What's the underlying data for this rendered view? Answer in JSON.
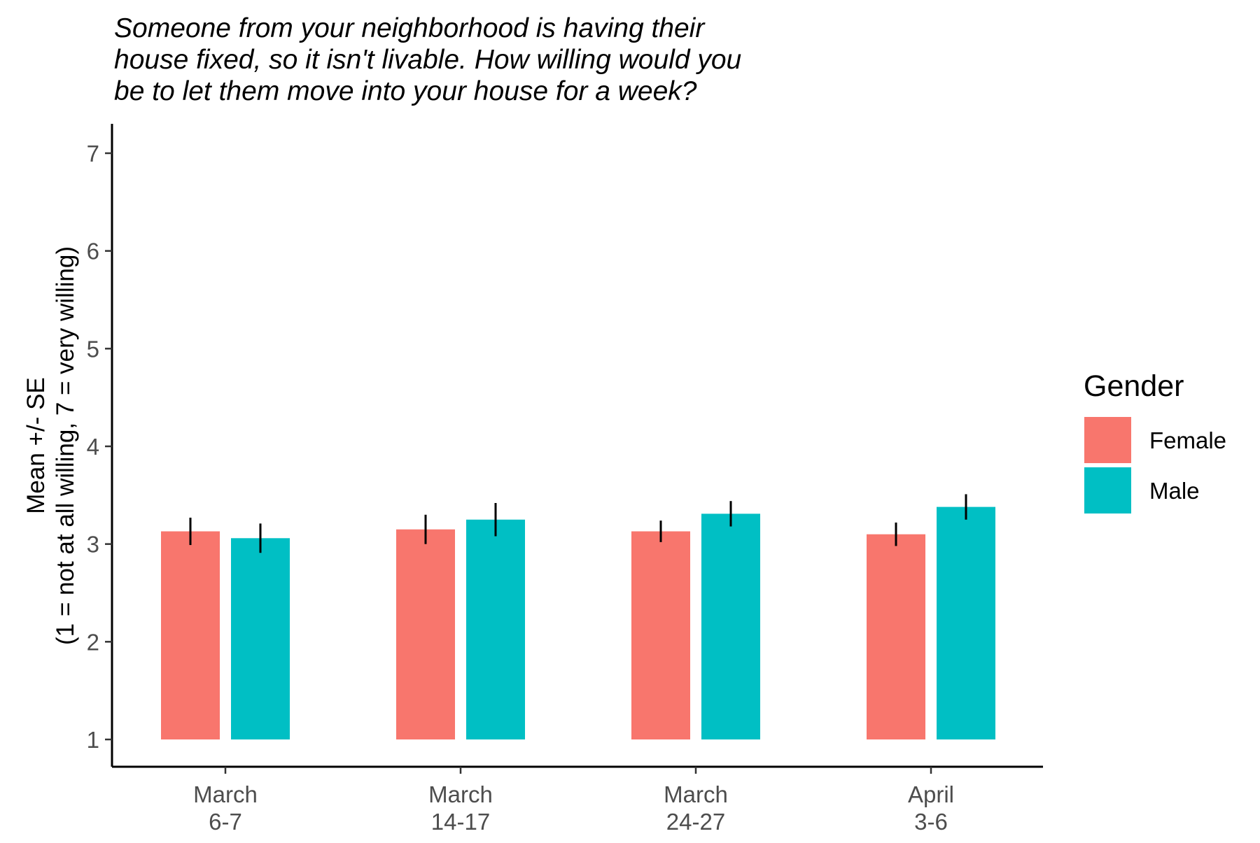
{
  "chart_data": {
    "type": "bar",
    "title_lines": [
      "Someone from your neighborhood is having their",
      "house fixed, so it isn't livable. How willing would you",
      "be to let them move into your house for a week?"
    ],
    "ylabel_lines": [
      "Mean +/- SE",
      "(1 = not at all willing, 7 = very willing)"
    ],
    "xlabel": "",
    "categories": [
      [
        "March",
        "6-7"
      ],
      [
        "March",
        "14-17"
      ],
      [
        "March",
        "24-27"
      ],
      [
        "April",
        "3-6"
      ]
    ],
    "series": [
      {
        "name": "Female",
        "color": "#F8766D",
        "values": [
          3.13,
          3.15,
          3.13,
          3.1
        ],
        "se": [
          0.14,
          0.15,
          0.11,
          0.12
        ]
      },
      {
        "name": "Male",
        "color": "#00BFC4",
        "values": [
          3.06,
          3.25,
          3.31,
          3.38
        ],
        "se": [
          0.15,
          0.17,
          0.13,
          0.13
        ]
      }
    ],
    "bar_baseline": 1,
    "ylim": [
      0.7,
      7.3
    ],
    "yticks": [
      1,
      2,
      3,
      4,
      5,
      6,
      7
    ],
    "legend": {
      "title": "Gender",
      "placement": "right"
    },
    "grid": false
  }
}
